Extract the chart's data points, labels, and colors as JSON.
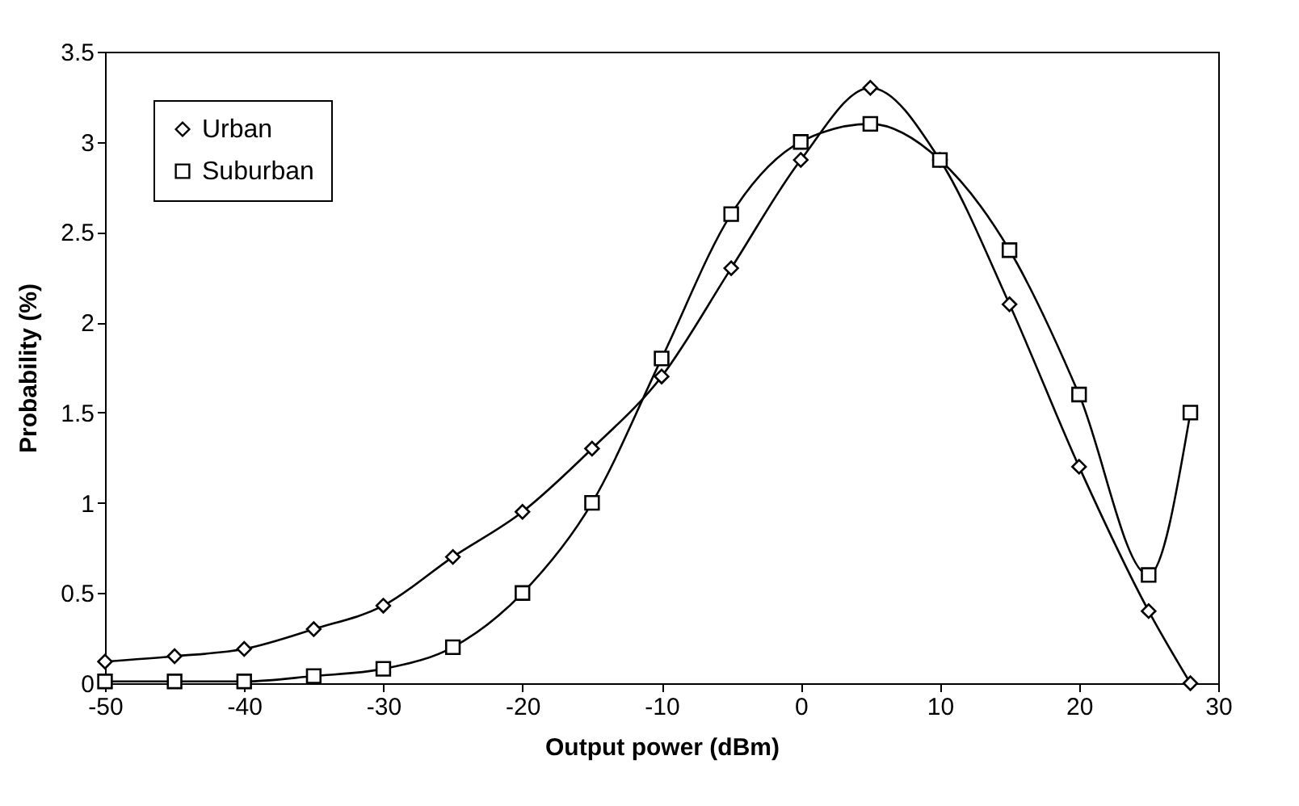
{
  "chart_data": {
    "type": "line",
    "xlabel": "Output power (dBm)",
    "ylabel": "Probability (%)",
    "x": [
      -50,
      -45,
      -40,
      -35,
      -30,
      -25,
      -20,
      -15,
      -10,
      -5,
      0,
      5,
      10,
      15,
      20,
      25,
      28
    ],
    "series": [
      {
        "name": "Urban",
        "color": "#000000",
        "marker": "diamond",
        "values": [
          0.12,
          0.15,
          0.19,
          0.3,
          0.43,
          0.7,
          0.95,
          1.3,
          1.7,
          2.3,
          2.9,
          3.3,
          2.9,
          2.1,
          1.2,
          0.4,
          0
        ]
      },
      {
        "name": "Suburban",
        "color": "#000000",
        "marker": "square",
        "values": [
          0.01,
          0.01,
          0.01,
          0.04,
          0.08,
          0.2,
          0.5,
          1.0,
          1.8,
          2.6,
          3.0,
          3.1,
          2.9,
          2.4,
          1.6,
          0.6,
          1.5
        ]
      }
    ],
    "xlim": [
      -50,
      30
    ],
    "xticks": [
      -50,
      -40,
      -30,
      -20,
      -10,
      0,
      10,
      20,
      30
    ],
    "ylim": [
      0,
      3.5
    ],
    "yticks": [
      0,
      0.5,
      1,
      1.5,
      2,
      2.5,
      3,
      3.5
    ],
    "grid": false,
    "legend": "top left",
    "line_style": "solid"
  }
}
